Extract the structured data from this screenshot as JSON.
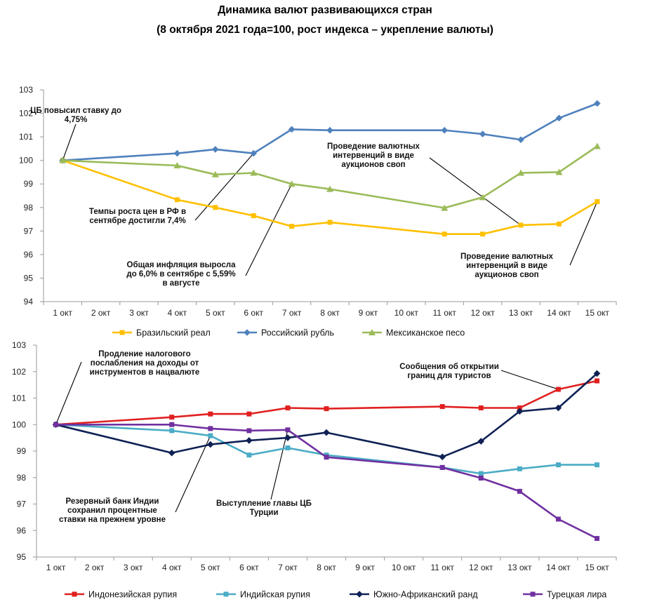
{
  "title_line1": "Динамика валют развивающихся стран",
  "title_line2": "(8 октября 2021 года=100, рост индекса – укрепление валюты)",
  "chart_data": [
    {
      "type": "line",
      "categories": [
        "1 окт",
        "2 окт",
        "3 окт",
        "4 окт",
        "5 окт",
        "6 окт",
        "7 окт",
        "8 окт",
        "9 окт",
        "10 окт",
        "11 окт",
        "12 окт",
        "13 окт",
        "14 окт",
        "15 окт"
      ],
      "ylim": [
        94,
        103
      ],
      "yticks": [
        94,
        95,
        96,
        97,
        98,
        99,
        100,
        101,
        102,
        103
      ],
      "grid": false,
      "legend_position": "bottom",
      "series": [
        {
          "name": "Бразильский реал",
          "color": "#FFC000",
          "marker": "square",
          "points": [
            [
              1,
              100
            ],
            [
              4,
              98.33
            ],
            [
              5,
              98.0
            ],
            [
              6,
              97.65
            ],
            [
              7,
              97.2
            ],
            [
              8,
              97.37
            ],
            [
              11,
              96.87
            ],
            [
              12,
              96.87
            ],
            [
              13,
              97.25
            ],
            [
              14,
              97.3
            ],
            [
              15,
              98.25
            ]
          ]
        },
        {
          "name": "Российский рубль",
          "color": "#4F81BD",
          "marker": "diamond",
          "points": [
            [
              1,
              100
            ],
            [
              4,
              100.3
            ],
            [
              5,
              100.47
            ],
            [
              6,
              100.3
            ],
            [
              7,
              101.32
            ],
            [
              8,
              101.28
            ],
            [
              11,
              101.28
            ],
            [
              12,
              101.12
            ],
            [
              13,
              100.88
            ],
            [
              14,
              101.8
            ],
            [
              15,
              102.42
            ]
          ]
        },
        {
          "name": "Мексиканское песо",
          "color": "#9BBB59",
          "marker": "triangle",
          "points": [
            [
              1,
              100
            ],
            [
              4,
              99.78
            ],
            [
              5,
              99.4
            ],
            [
              6,
              99.47
            ],
            [
              7,
              99.0
            ],
            [
              8,
              98.78
            ],
            [
              11,
              97.98
            ],
            [
              12,
              98.43
            ],
            [
              13,
              99.47
            ],
            [
              14,
              99.5
            ],
            [
              15,
              100.6
            ]
          ]
        }
      ],
      "annotations": [
        {
          "lines": [
            "ЦБ повысил ставку до",
            "4,75%"
          ],
          "target": [
            1,
            100
          ]
        },
        {
          "lines": [
            "Темпы роста цен в РФ в",
            "сентябре достигли 7,4%"
          ],
          "target": [
            6,
            100.3
          ]
        },
        {
          "lines": [
            "Общая инфляция выросла",
            "до 6,0% в сентябре с 5,59%",
            "в августе"
          ],
          "target": [
            7,
            99.0
          ]
        },
        {
          "lines": [
            "Проведение валютных",
            "интервенций в виде",
            "аукционов своп"
          ],
          "target": [
            13,
            97.25
          ]
        },
        {
          "lines": [
            "Проведение валютных",
            "интервенций в виде",
            "аукционов своп"
          ],
          "target": [
            15,
            98.25
          ]
        }
      ]
    },
    {
      "type": "line",
      "categories": [
        "1 окт",
        "2 окт",
        "3 окт",
        "4 окт",
        "5 окт",
        "6 окт",
        "7 окт",
        "8 окт",
        "9 окт",
        "10 окт",
        "11 окт",
        "12 окт",
        "13 окт",
        "14 окт",
        "15 окт"
      ],
      "ylim": [
        95,
        103
      ],
      "yticks": [
        95,
        96,
        97,
        98,
        99,
        100,
        101,
        102,
        103
      ],
      "grid": false,
      "legend_position": "bottom",
      "series": [
        {
          "name": "Индонезийская рупия",
          "color": "#E02020",
          "marker": "square",
          "points": [
            [
              1,
              100
            ],
            [
              4,
              100.28
            ],
            [
              5,
              100.4
            ],
            [
              6,
              100.4
            ],
            [
              7,
              100.63
            ],
            [
              8,
              100.6
            ],
            [
              11,
              100.68
            ],
            [
              12,
              100.63
            ],
            [
              13,
              100.63
            ],
            [
              14,
              101.33
            ],
            [
              15,
              101.65
            ]
          ]
        },
        {
          "name": "Индийская рупия",
          "color": "#4BACC6",
          "marker": "square",
          "points": [
            [
              1,
              100
            ],
            [
              4,
              99.77
            ],
            [
              5,
              99.58
            ],
            [
              6,
              98.85
            ],
            [
              7,
              99.12
            ],
            [
              8,
              98.85
            ],
            [
              11,
              98.38
            ],
            [
              12,
              98.15
            ],
            [
              13,
              98.33
            ],
            [
              14,
              98.48
            ],
            [
              15,
              98.48
            ]
          ]
        },
        {
          "name": "Южно-Африканский ранд",
          "color": "#0F2154",
          "marker": "diamond",
          "points": [
            [
              1,
              100
            ],
            [
              4,
              98.93
            ],
            [
              5,
              99.25
            ],
            [
              6,
              99.4
            ],
            [
              7,
              99.5
            ],
            [
              8,
              99.7
            ],
            [
              11,
              98.78
            ],
            [
              12,
              99.37
            ],
            [
              13,
              100.5
            ],
            [
              14,
              100.63
            ],
            [
              15,
              101.93
            ]
          ]
        },
        {
          "name": "Турецкая лира",
          "color": "#7030A0",
          "marker": "square",
          "points": [
            [
              1,
              100
            ],
            [
              4,
              100.0
            ],
            [
              5,
              99.85
            ],
            [
              6,
              99.77
            ],
            [
              7,
              99.8
            ],
            [
              8,
              98.77
            ],
            [
              11,
              98.38
            ],
            [
              12,
              97.98
            ],
            [
              13,
              97.48
            ],
            [
              14,
              96.43
            ],
            [
              15,
              95.7
            ]
          ]
        }
      ],
      "annotations": [
        {
          "lines": [
            "Продление налогового",
            "послабления на доходы от",
            "инструментов в нацвалюте"
          ],
          "target": [
            1,
            100
          ]
        },
        {
          "lines": [
            "Резервный банк Индии",
            "сохранил процентные",
            "ставки на прежнем уровне"
          ],
          "target": [
            5,
            99.58
          ]
        },
        {
          "lines": [
            "Выступление главы ЦБ",
            "Турции"
          ],
          "target": [
            7,
            99.8
          ]
        },
        {
          "lines": [
            "Сообщения об открытии",
            "границ для туристов"
          ],
          "target": [
            14,
            101.33
          ]
        }
      ]
    }
  ]
}
